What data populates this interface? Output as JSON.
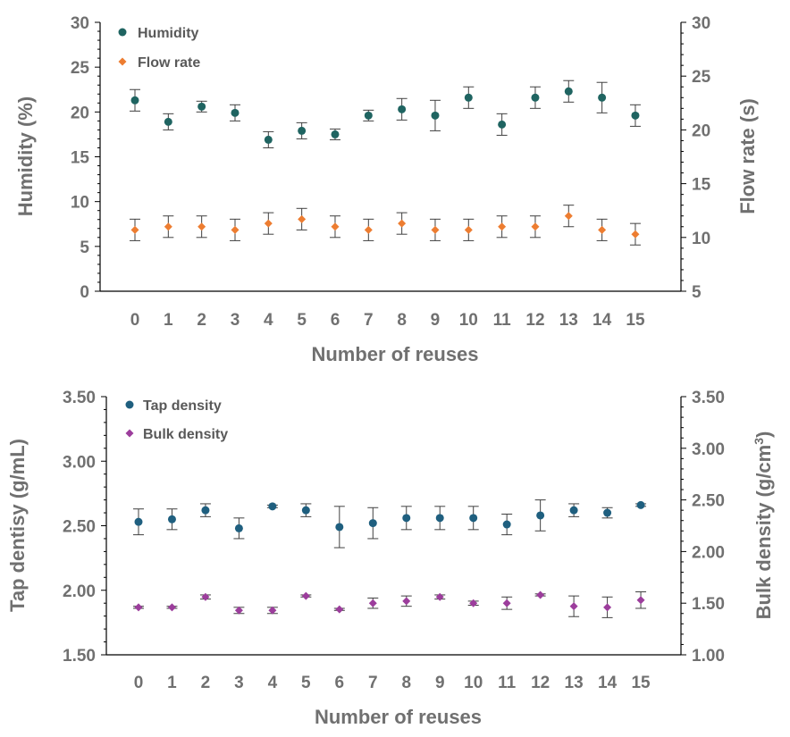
{
  "chart_data": [
    {
      "type": "scatter",
      "x": [
        0,
        1,
        2,
        3,
        4,
        5,
        6,
        7,
        8,
        9,
        10,
        11,
        12,
        13,
        14,
        15
      ],
      "xlabel": "Number of reuses",
      "ylabel": "Humidity (%)",
      "y2label": "Flow rate (s)",
      "ylim": [
        0,
        30
      ],
      "y2lim": [
        5,
        30
      ],
      "yticks": [
        "0",
        "5",
        "10",
        "15",
        "20",
        "25",
        "30"
      ],
      "y2ticks": [
        "5",
        "10",
        "15",
        "20",
        "25",
        "30"
      ],
      "legend_position": "top-left",
      "series": [
        {
          "name": "Humidity",
          "axis": "left",
          "color": "#1f6461",
          "marker": "circle",
          "values": [
            21.3,
            18.9,
            20.6,
            19.9,
            16.9,
            17.9,
            17.5,
            19.6,
            20.3,
            19.6,
            21.6,
            18.6,
            21.6,
            22.3,
            21.6,
            19.6
          ],
          "errors": [
            1.2,
            0.9,
            0.6,
            0.9,
            0.9,
            0.9,
            0.6,
            0.6,
            1.2,
            1.7,
            1.2,
            1.2,
            1.2,
            1.2,
            1.7,
            1.2
          ]
        },
        {
          "name": "Flow rate",
          "axis": "right",
          "color": "#ed7d31",
          "marker": "diamond",
          "values": [
            10.7,
            11.0,
            11.0,
            10.7,
            11.3,
            11.7,
            11.0,
            10.7,
            11.3,
            10.7,
            10.7,
            11.0,
            11.0,
            12.0,
            10.7,
            10.3
          ],
          "errors": [
            1.0,
            1.0,
            1.0,
            1.0,
            1.0,
            1.0,
            1.0,
            1.0,
            1.0,
            1.0,
            1.0,
            1.0,
            1.0,
            1.0,
            1.0,
            1.0
          ]
        }
      ]
    },
    {
      "type": "scatter",
      "x": [
        0,
        1,
        2,
        3,
        4,
        5,
        6,
        7,
        8,
        9,
        10,
        11,
        12,
        13,
        14,
        15
      ],
      "xlabel": "Number of reuses",
      "ylabel": "Tap dentisy (g/mL)",
      "y2label": "Bulk density  (g/cm",
      "y2label_sup": "3",
      "y2label_end": ")",
      "ylim": [
        1.5,
        3.5
      ],
      "y2lim": [
        1.0,
        3.5
      ],
      "yticks": [
        "1.50",
        "2.00",
        "2.50",
        "3.00",
        "3.50"
      ],
      "y2ticks": [
        "1.00",
        "1.50",
        "2.00",
        "2.50",
        "3.00",
        "3.50"
      ],
      "legend_position": "top-left",
      "series": [
        {
          "name": "Tap density",
          "axis": "left",
          "color": "#1f5f7f",
          "marker": "circle",
          "values": [
            2.53,
            2.55,
            2.62,
            2.48,
            2.65,
            2.62,
            2.49,
            2.52,
            2.56,
            2.56,
            2.56,
            2.51,
            2.58,
            2.62,
            2.6,
            2.66
          ],
          "errors": [
            0.1,
            0.08,
            0.05,
            0.08,
            0.01,
            0.05,
            0.16,
            0.12,
            0.09,
            0.09,
            0.09,
            0.08,
            0.12,
            0.05,
            0.04,
            0.01
          ]
        },
        {
          "name": "Bulk density",
          "axis": "right",
          "color": "#9c3d9c",
          "marker": "diamond",
          "values": [
            1.46,
            1.46,
            1.56,
            1.43,
            1.43,
            1.57,
            1.44,
            1.5,
            1.52,
            1.56,
            1.5,
            1.5,
            1.58,
            1.47,
            1.46,
            1.53
          ],
          "errors": [
            0.01,
            0.01,
            0.02,
            0.03,
            0.03,
            0.01,
            0.01,
            0.05,
            0.05,
            0.02,
            0.02,
            0.06,
            0.01,
            0.1,
            0.1,
            0.08
          ]
        }
      ]
    }
  ]
}
